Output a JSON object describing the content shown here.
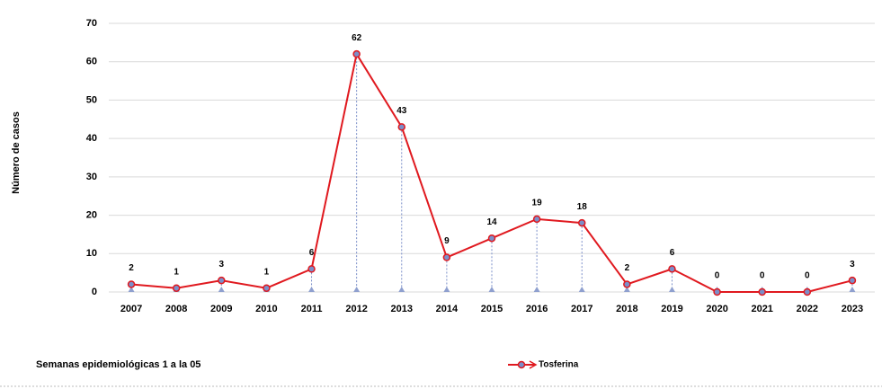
{
  "chart_data": {
    "type": "line",
    "y_label": "Número de casos",
    "x_label": "Semanas epidemiológicas 1 a la 05",
    "categories": [
      "2007",
      "2008",
      "2009",
      "2010",
      "2011",
      "2012",
      "2013",
      "2014",
      "2015",
      "2016",
      "2017",
      "2018",
      "2019",
      "2020",
      "2021",
      "2022",
      "2023"
    ],
    "series": [
      {
        "name": "Tosferina",
        "color": "#e0191f",
        "marker_fill": "#7b8fc9",
        "values": [
          2,
          1,
          3,
          1,
          6,
          62,
          43,
          9,
          14,
          19,
          18,
          2,
          6,
          0,
          0,
          0,
          3
        ]
      }
    ],
    "ylim": [
      0,
      70
    ],
    "yticks": [
      0,
      10,
      20,
      30,
      40,
      50,
      60,
      70
    ],
    "grid": true,
    "drop_lines": true,
    "legend": "bottom"
  }
}
